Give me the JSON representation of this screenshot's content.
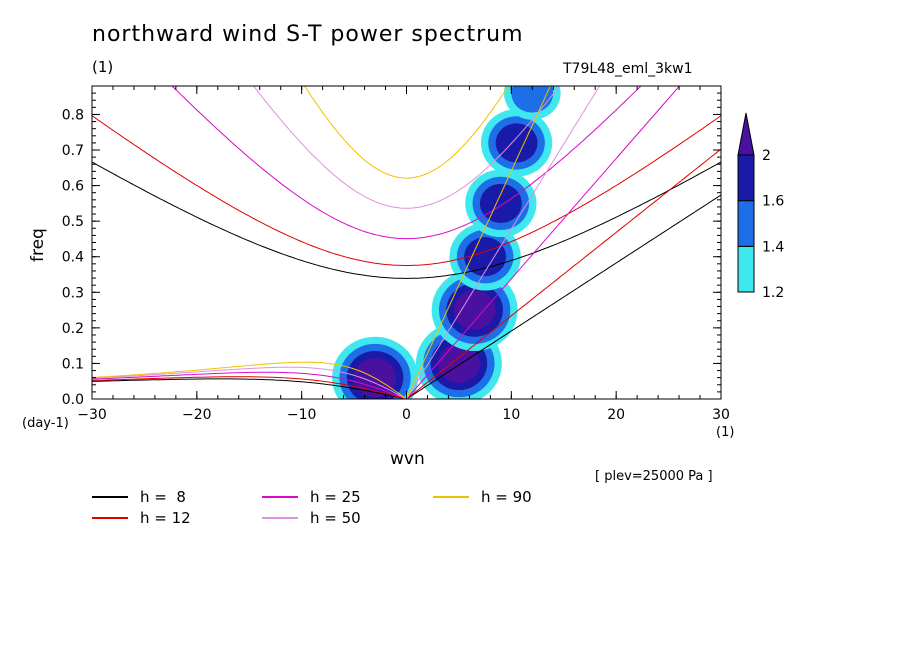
{
  "header": {
    "title": "northward wind S-T power spectrum",
    "subtitle": "(1)",
    "run_name": "T79L48_eml_3kw1",
    "plev_note": "[ plev=25000 Pa ]"
  },
  "chart_data": {
    "type": "heatmap",
    "title": "northward wind S-T power spectrum",
    "xlabel": "wvn",
    "ylabel": "freq",
    "x_unit": "(1)",
    "y_unit": "(day-1)",
    "xlim": [
      -30,
      30
    ],
    "ylim": [
      0,
      0.88
    ],
    "x_ticks": [
      -30,
      -20,
      -10,
      0,
      10,
      20,
      30
    ],
    "y_ticks": [
      0.0,
      0.1,
      0.2,
      0.3,
      0.4,
      0.5,
      0.6,
      0.7,
      0.8
    ],
    "x_tick_labels": [
      "−30",
      "−20",
      "−10",
      "0",
      "10",
      "20",
      "30"
    ],
    "y_tick_labels": [
      "0.0",
      "0.1",
      "0.2",
      "0.3",
      "0.4",
      "0.5",
      "0.6",
      "0.7",
      "0.8"
    ],
    "colorbar": {
      "levels": [
        1.2,
        1.4,
        1.6,
        2
      ],
      "labels": [
        "1.2",
        "1.4",
        "1.6",
        "2"
      ],
      "colors": [
        "#3fe8ee",
        "#1e6ee8",
        "#1a1aa8",
        "#4a10a0"
      ]
    },
    "dispersion_curves": [
      {
        "name": "h =  8",
        "h": 8,
        "color": "#000000"
      },
      {
        "name": "h = 12",
        "h": 12,
        "color": "#e00000"
      },
      {
        "name": "h = 25",
        "h": 25,
        "color": "#d80ac8"
      },
      {
        "name": "h = 50",
        "h": 50,
        "color": "#e090e0"
      },
      {
        "name": "h = 90",
        "h": 90,
        "color": "#f0c000"
      }
    ],
    "spectral_peaks": [
      {
        "x": -3.0,
        "y": 0.06,
        "level": 2
      },
      {
        "x": 5.0,
        "y": 0.1,
        "level": 2
      },
      {
        "x": 6.5,
        "y": 0.25,
        "level": 2
      },
      {
        "x": 7.5,
        "y": 0.4,
        "level": 1.6
      },
      {
        "x": 9.0,
        "y": 0.55,
        "level": 1.6
      },
      {
        "x": 10.5,
        "y": 0.72,
        "level": 1.6
      },
      {
        "x": 12.0,
        "y": 0.86,
        "level": 1.4
      }
    ],
    "grid": false,
    "legend_position": "bottom-left"
  },
  "legend": [
    {
      "label": "h =  8",
      "color": "#000000"
    },
    {
      "label": "h = 12",
      "color": "#e00000"
    },
    {
      "label": "h = 25",
      "color": "#d80ac8"
    },
    {
      "label": "h = 50",
      "color": "#e090e0"
    },
    {
      "label": "h = 90",
      "color": "#f0c000"
    }
  ]
}
